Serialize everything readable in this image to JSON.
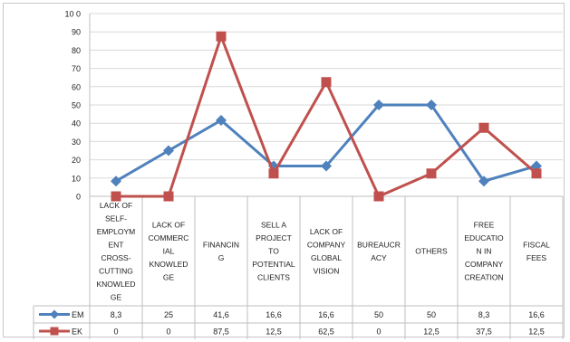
{
  "chart_data": {
    "type": "line",
    "ylim": [
      0,
      100
    ],
    "yticks": [
      "10 0",
      "90",
      "80",
      "70",
      "60",
      "50",
      "40",
      "30",
      "20",
      "10",
      "0"
    ],
    "categories": [
      [
        "LACK OF",
        "SELF-",
        "EMPLOYM",
        "ENT",
        "CROSS-",
        "CUTTING",
        "KNOWLED",
        "GE"
      ],
      [
        "LACK OF",
        "COMMERC",
        "IAL",
        "KNOWLED",
        "GE"
      ],
      [
        "FINANCIN",
        "G"
      ],
      [
        "SELL A",
        "PROJECT",
        "TO",
        "POTENTIAL",
        "CLIENTS"
      ],
      [
        "LACK OF",
        "COMPANY",
        "GLOBAL",
        "VISION"
      ],
      [
        "BUREAUCR",
        "ACY"
      ],
      [
        "OTHERS"
      ],
      [
        "FREE",
        "EDUCATIO",
        "N IN",
        "COMPANY",
        "CREATION"
      ],
      [
        "FISCAL",
        "FEES"
      ]
    ],
    "series": [
      {
        "name": "EM",
        "color": "#4f81bd",
        "marker": "diamond",
        "values": [
          8.3,
          25,
          41.6,
          16.6,
          16.6,
          50,
          50,
          8.3,
          16.6
        ],
        "labels": [
          "8,3",
          "25",
          "41,6",
          "16,6",
          "16,6",
          "50",
          "50",
          "8,3",
          "16,6"
        ]
      },
      {
        "name": "EK",
        "color": "#c0504d",
        "marker": "square",
        "values": [
          0,
          0,
          87.5,
          12.5,
          62.5,
          0,
          12.5,
          37.5,
          12.5
        ],
        "labels": [
          "0",
          "0",
          "87,5",
          "12,5",
          "62,5",
          "0",
          "12,5",
          "37,5",
          "12,5"
        ]
      }
    ],
    "grid": true
  }
}
